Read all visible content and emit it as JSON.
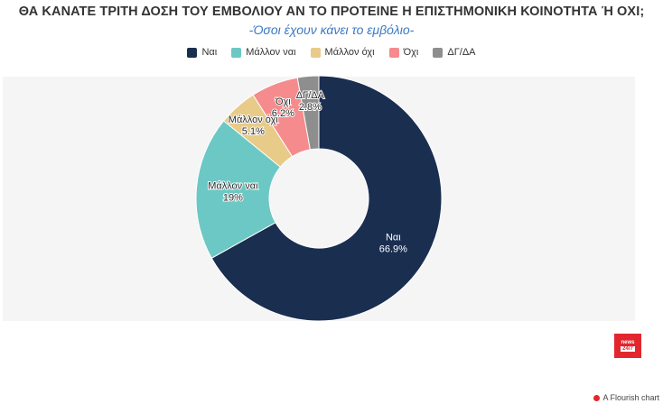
{
  "header": {
    "title": "ΘΑ ΚΑΝΑΤΕ ΤΡΙΤΗ ΔΟΣΗ ΤΟΥ ΕΜΒΟΛΙΟΥ ΑΝ ΤΟ ΠΡΟΤΕΙΝΕ Η ΕΠΙΣΤΗΜΟΝΙΚΗ ΚΟΙΝΟΤΗΤΑ Ή ΟΧΙ;",
    "subtitle": "-Όσοι έχουν κάνει το εμβόλιο-"
  },
  "chart_data": {
    "type": "pie",
    "donut": true,
    "legend_position": "top-center",
    "categories": [
      "Ναι",
      "Μάλλον ναι",
      "Μάλλον όχι",
      "Όχι",
      "ΔΓ/ΔΑ"
    ],
    "values": [
      66.9,
      19,
      5.1,
      6.2,
      2.8
    ],
    "value_labels": [
      "66.9%",
      "19%",
      "5.1%",
      "6.2%",
      "2.8%"
    ],
    "colors": [
      "#1a2e50",
      "#6cc8c4",
      "#e8cb88",
      "#f58b8c",
      "#8e8e8e"
    ]
  },
  "branding": {
    "logo_line1": "news",
    "logo_line2": "24/7",
    "credit": "A Flourish chart"
  }
}
